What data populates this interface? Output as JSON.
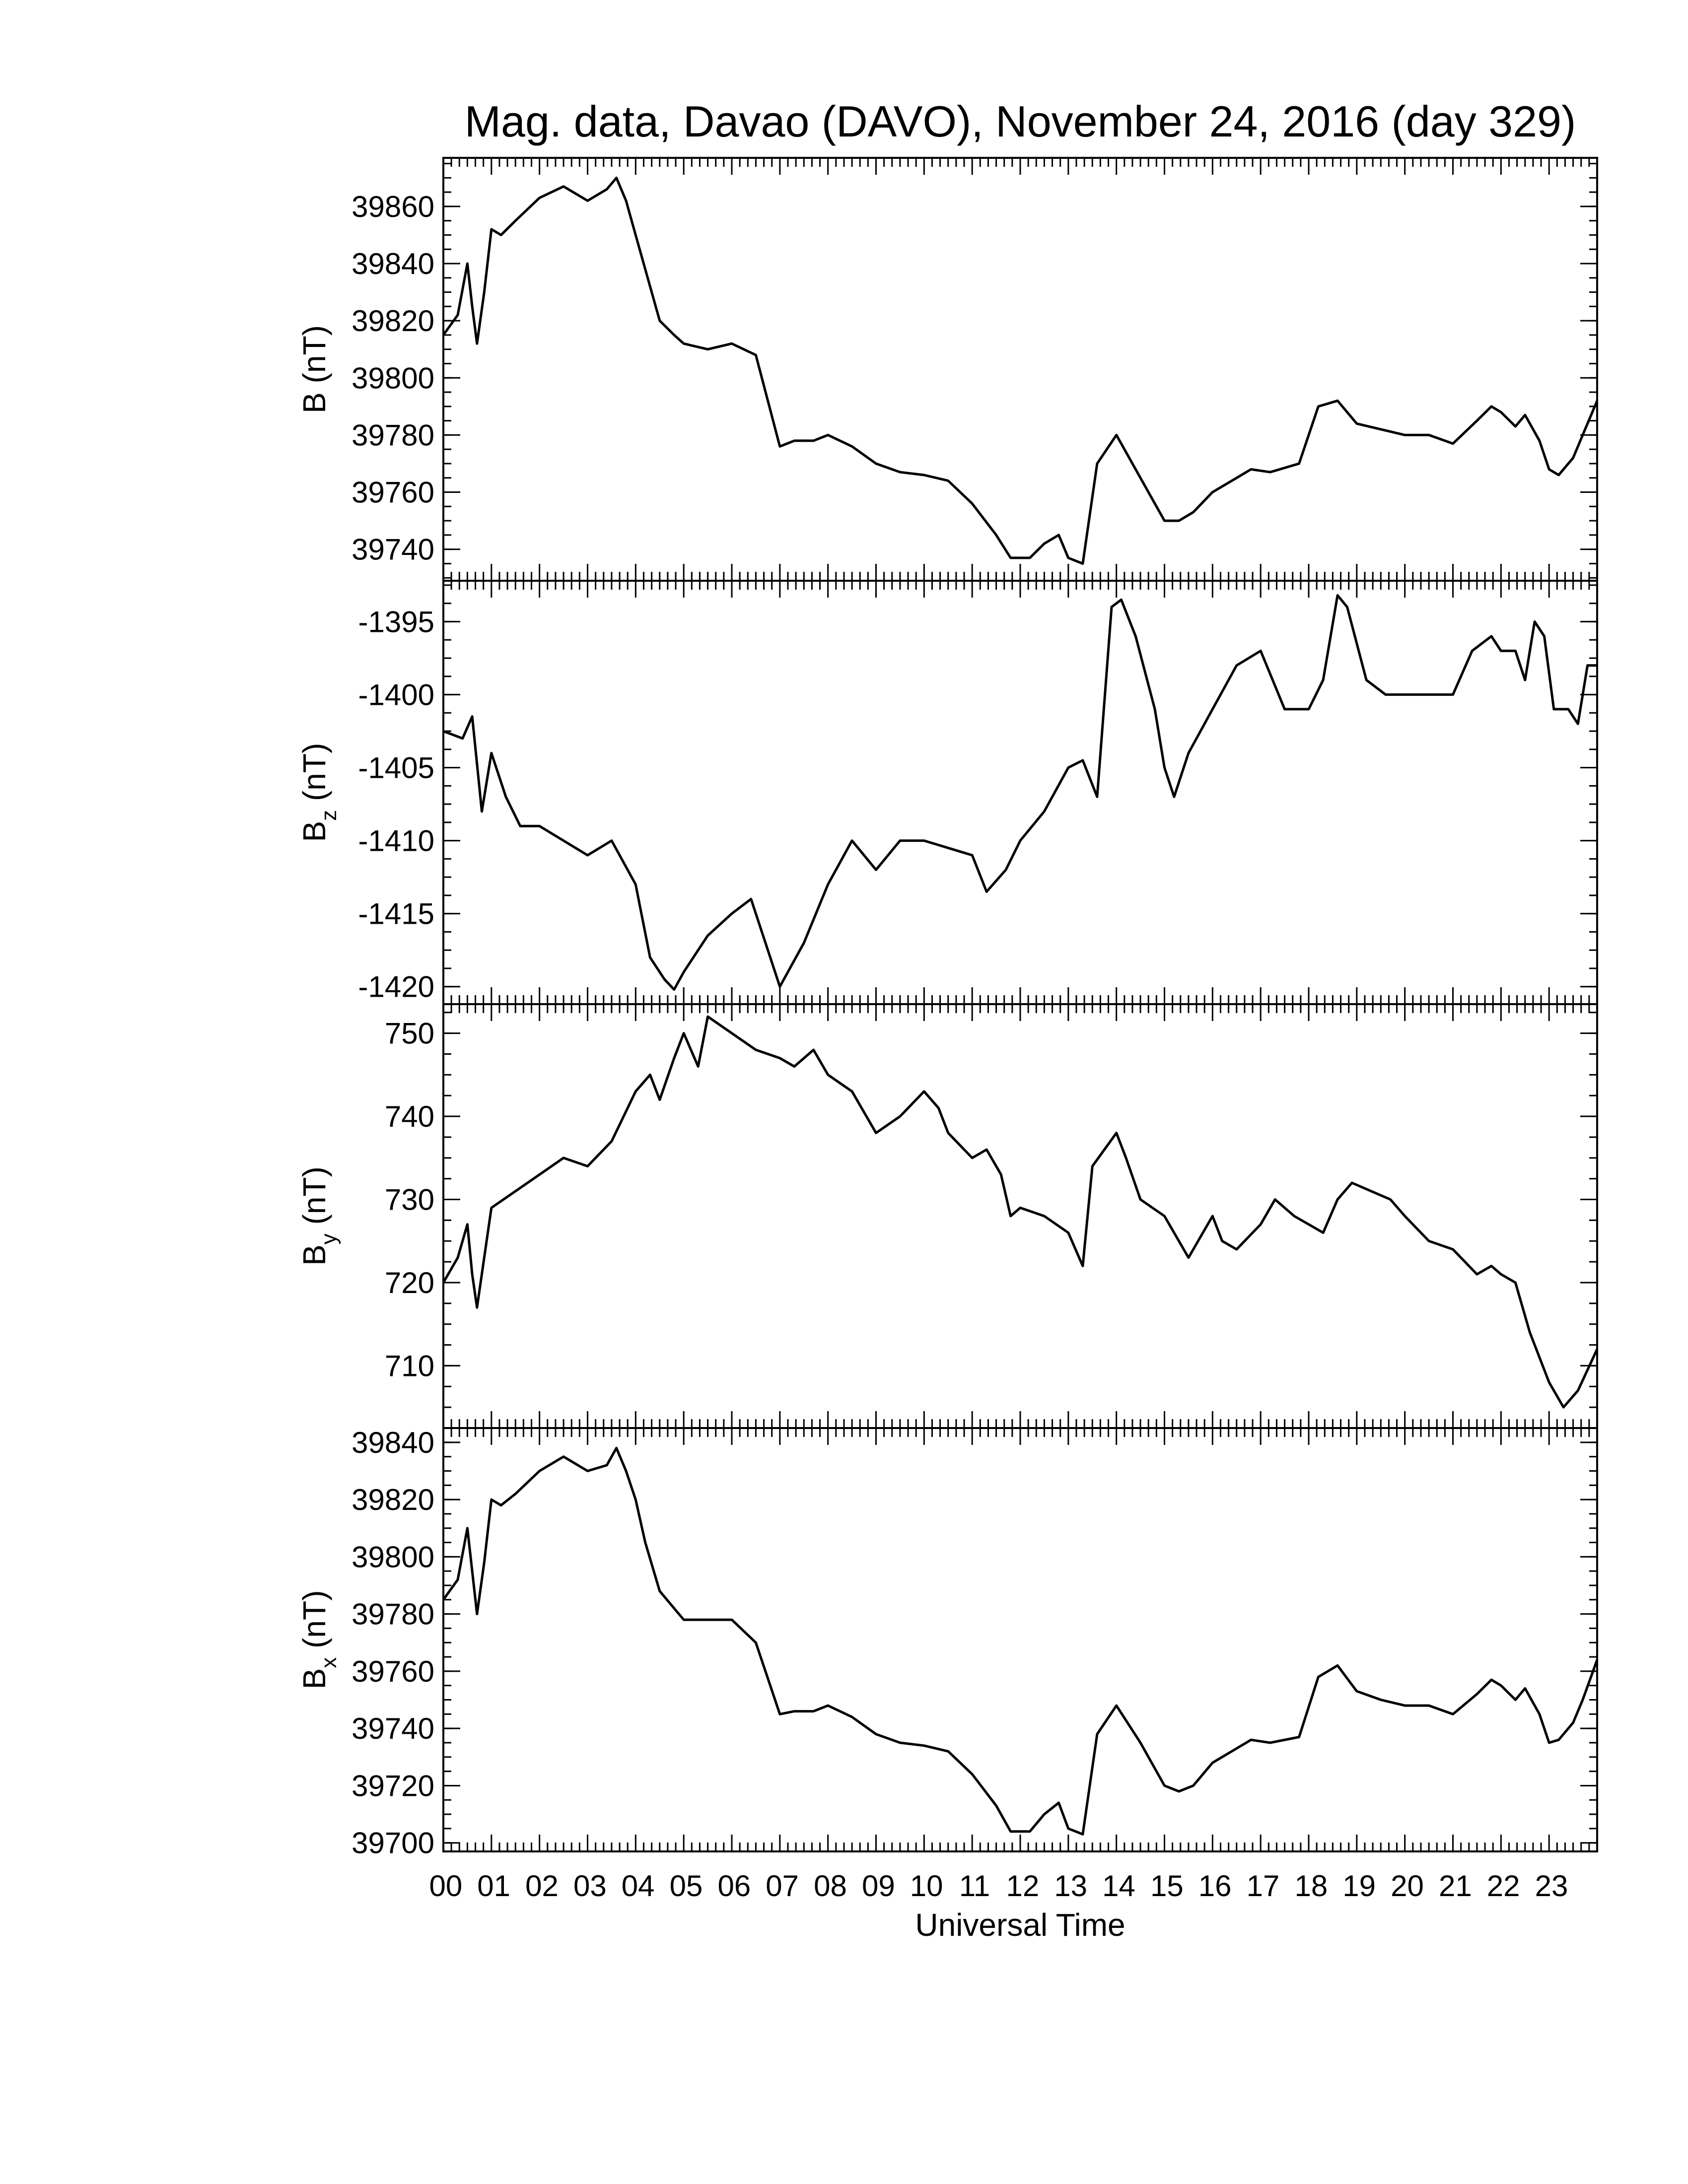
{
  "chart_data": {
    "type": "line",
    "title": "Mag. data, Davao (DAVO), November 24, 2016 (day 329)",
    "xlabel": "Universal Time",
    "xlim": [
      0,
      24
    ],
    "x_tick_labels": [
      "00",
      "01",
      "02",
      "03",
      "04",
      "05",
      "06",
      "07",
      "08",
      "09",
      "10",
      "11",
      "12",
      "13",
      "14",
      "15",
      "16",
      "17",
      "18",
      "19",
      "20",
      "21",
      "22",
      "23"
    ],
    "panels": [
      {
        "ylabel": "B (nT)",
        "ylabel_main": "B",
        "ylabel_sub": "",
        "ylabel_unit": "(nT)",
        "ylim": [
          39729,
          39877
        ],
        "y_ticks": [
          39740,
          39760,
          39780,
          39800,
          39820,
          39840,
          39860
        ],
        "x": [
          0,
          0.3,
          0.5,
          0.6,
          0.7,
          0.85,
          1.0,
          1.2,
          1.5,
          2.0,
          2.5,
          3.0,
          3.4,
          3.6,
          3.8,
          4.0,
          4.2,
          4.5,
          4.8,
          5.0,
          5.5,
          6.0,
          6.5,
          7.0,
          7.3,
          7.7,
          8.0,
          8.5,
          9.0,
          9.5,
          10.0,
          10.5,
          11.0,
          11.5,
          11.8,
          12.2,
          12.5,
          12.8,
          13.0,
          13.3,
          13.6,
          14.0,
          14.5,
          15.0,
          15.3,
          15.6,
          16.0,
          16.5,
          16.8,
          17.2,
          17.8,
          18.2,
          18.6,
          19.0,
          19.5,
          20.0,
          20.5,
          21.0,
          21.5,
          21.8,
          22.0,
          22.3,
          22.5,
          22.8,
          23.0,
          23.2,
          23.5,
          23.7,
          24.0
        ],
        "values": [
          39815,
          39822,
          39840,
          39825,
          39812,
          39830,
          39852,
          39850,
          39855,
          39863,
          39867,
          39862,
          39866,
          39870,
          39862,
          39850,
          39838,
          39820,
          39815,
          39812,
          39810,
          39812,
          39808,
          39776,
          39778,
          39778,
          39780,
          39776,
          39770,
          39767,
          39766,
          39764,
          39756,
          39745,
          39737,
          39737,
          39742,
          39745,
          39737,
          39735,
          39770,
          39780,
          39765,
          39750,
          39750,
          39753,
          39760,
          39765,
          39768,
          39767,
          39770,
          39790,
          39792,
          39784,
          39782,
          39780,
          39780,
          39777,
          39785,
          39790,
          39788,
          39783,
          39787,
          39778,
          39768,
          39766,
          39772,
          39780,
          39792
        ]
      },
      {
        "ylabel": "Bz (nT)",
        "ylabel_main": "B",
        "ylabel_sub": "z",
        "ylabel_unit": "(nT)",
        "ylim": [
          -1421.2,
          -1392.2
        ],
        "y_ticks": [
          -1420,
          -1415,
          -1410,
          -1405,
          -1400,
          -1395
        ],
        "x": [
          0,
          0.4,
          0.6,
          0.8,
          1.0,
          1.3,
          1.6,
          2.0,
          2.5,
          3.0,
          3.5,
          4.0,
          4.3,
          4.6,
          4.8,
          5.0,
          5.5,
          6.0,
          6.4,
          6.7,
          7.0,
          7.5,
          8.0,
          8.5,
          9.0,
          9.5,
          10.0,
          10.5,
          11.0,
          11.3,
          11.7,
          12.0,
          12.5,
          13.0,
          13.3,
          13.6,
          13.9,
          14.1,
          14.4,
          14.8,
          15.0,
          15.2,
          15.5,
          16.0,
          16.5,
          17.0,
          17.5,
          18.0,
          18.3,
          18.6,
          18.8,
          19.2,
          19.6,
          20.0,
          20.5,
          21.0,
          21.4,
          21.8,
          22.0,
          22.3,
          22.5,
          22.7,
          22.9,
          23.1,
          23.4,
          23.6,
          23.8,
          24.0
        ],
        "values": [
          -1402.5,
          -1403,
          -1401.5,
          -1408,
          -1404,
          -1407,
          -1409,
          -1409,
          -1410,
          -1411,
          -1410,
          -1413,
          -1418,
          -1419.5,
          -1420.2,
          -1419,
          -1416.5,
          -1415,
          -1414,
          -1417,
          -1420,
          -1417,
          -1413,
          -1410,
          -1412,
          -1410,
          -1410,
          -1410.5,
          -1411,
          -1413.5,
          -1412,
          -1410,
          -1408,
          -1405,
          -1404.5,
          -1407,
          -1394,
          -1393.5,
          -1396,
          -1401,
          -1405,
          -1407,
          -1404,
          -1401,
          -1398,
          -1397,
          -1401,
          -1401,
          -1399,
          -1393.2,
          -1394,
          -1399,
          -1400,
          -1400,
          -1400,
          -1400,
          -1397,
          -1396,
          -1397,
          -1397,
          -1399,
          -1395,
          -1396,
          -1401,
          -1401,
          -1402,
          -1398,
          -1398
        ]
      },
      {
        "ylabel": "By (nT)",
        "ylabel_main": "B",
        "ylabel_sub": "y",
        "ylabel_unit": "(nT)",
        "ylim": [
          702.5,
          753.5
        ],
        "y_ticks": [
          710,
          720,
          730,
          740,
          750
        ],
        "x": [
          0,
          0.3,
          0.5,
          0.6,
          0.7,
          0.85,
          1.0,
          1.5,
          2.0,
          2.5,
          3.0,
          3.5,
          4.0,
          4.3,
          4.5,
          4.8,
          5.0,
          5.3,
          5.5,
          6.0,
          6.5,
          7.0,
          7.3,
          7.7,
          8.0,
          8.5,
          9.0,
          9.5,
          10.0,
          10.3,
          10.5,
          11.0,
          11.3,
          11.6,
          11.8,
          12.0,
          12.5,
          13.0,
          13.3,
          13.5,
          14.0,
          14.2,
          14.5,
          15.0,
          15.5,
          16.0,
          16.2,
          16.5,
          17.0,
          17.3,
          17.7,
          18.0,
          18.3,
          18.6,
          18.9,
          19.3,
          19.7,
          20.0,
          20.5,
          21.0,
          21.5,
          21.8,
          22.0,
          22.3,
          22.6,
          23.0,
          23.3,
          23.6,
          24.0
        ],
        "values": [
          720,
          723,
          727,
          721,
          717,
          723,
          729,
          731,
          733,
          735,
          734,
          737,
          743,
          745,
          742,
          747,
          750,
          746,
          752,
          750,
          748,
          747,
          746,
          748,
          745,
          743,
          738,
          740,
          743,
          741,
          738,
          735,
          736,
          733,
          728,
          729,
          728,
          726,
          722,
          734,
          738,
          735,
          730,
          728,
          723,
          728,
          725,
          724,
          727,
          730,
          728,
          727,
          726,
          730,
          732,
          731,
          730,
          728,
          725,
          724,
          721,
          722,
          721,
          720,
          714,
          708,
          705,
          707,
          712
        ]
      },
      {
        "ylabel": "Bx (nT)",
        "ylabel_main": "B",
        "ylabel_sub": "x",
        "ylabel_unit": "(nT)",
        "ylim": [
          39697,
          39845
        ],
        "y_ticks": [
          39700,
          39720,
          39740,
          39760,
          39780,
          39800,
          39820,
          39840
        ],
        "x": [
          0,
          0.3,
          0.5,
          0.6,
          0.7,
          0.85,
          1.0,
          1.2,
          1.5,
          2.0,
          2.5,
          3.0,
          3.4,
          3.6,
          3.8,
          4.0,
          4.2,
          4.5,
          4.8,
          5.0,
          5.5,
          6.0,
          6.5,
          7.0,
          7.3,
          7.7,
          8.0,
          8.5,
          9.0,
          9.5,
          10.0,
          10.5,
          11.0,
          11.5,
          11.8,
          12.2,
          12.5,
          12.8,
          13.0,
          13.3,
          13.6,
          14.0,
          14.5,
          15.0,
          15.3,
          15.6,
          16.0,
          16.5,
          16.8,
          17.2,
          17.8,
          18.2,
          18.6,
          19.0,
          19.5,
          20.0,
          20.5,
          21.0,
          21.5,
          21.8,
          22.0,
          22.3,
          22.5,
          22.8,
          23.0,
          23.2,
          23.5,
          23.7,
          24.0
        ],
        "values": [
          39785,
          39792,
          39810,
          39795,
          39780,
          39798,
          39820,
          39818,
          39822,
          39830,
          39835,
          39830,
          39832,
          39838,
          39830,
          39820,
          39805,
          39788,
          39782,
          39778,
          39778,
          39778,
          39770,
          39745,
          39746,
          39746,
          39748,
          39744,
          39738,
          39735,
          39734,
          39732,
          39724,
          39713,
          39704,
          39704,
          39710,
          39714,
          39705,
          39703,
          39738,
          39748,
          39735,
          39720,
          39718,
          39720,
          39728,
          39733,
          39736,
          39735,
          39737,
          39758,
          39762,
          39753,
          39750,
          39748,
          39748,
          39745,
          39752,
          39757,
          39755,
          39750,
          39754,
          39745,
          39735,
          39736,
          39742,
          39750,
          39764
        ]
      }
    ]
  }
}
